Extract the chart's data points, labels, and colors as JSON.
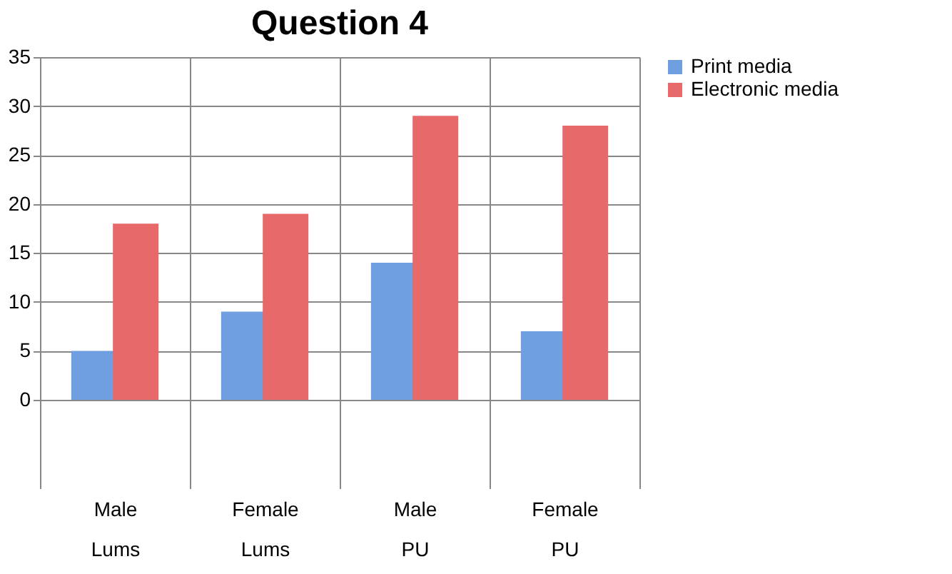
{
  "chart_data": {
    "type": "bar",
    "title": "Question 4",
    "categories": [
      "Male Lums",
      "Female Lums",
      "Male PU",
      "Female PU"
    ],
    "series": [
      {
        "name": "Print media",
        "color": "#6f9fe0",
        "values": [
          5,
          9,
          14,
          7
        ]
      },
      {
        "name": "Electronic media",
        "color": "#e8696a",
        "values": [
          18,
          19,
          29,
          28
        ]
      }
    ],
    "ylim": [
      0,
      35
    ],
    "yticks": [
      0,
      5,
      10,
      15,
      20,
      25,
      30,
      35
    ],
    "grid": "y",
    "legend": "right"
  }
}
